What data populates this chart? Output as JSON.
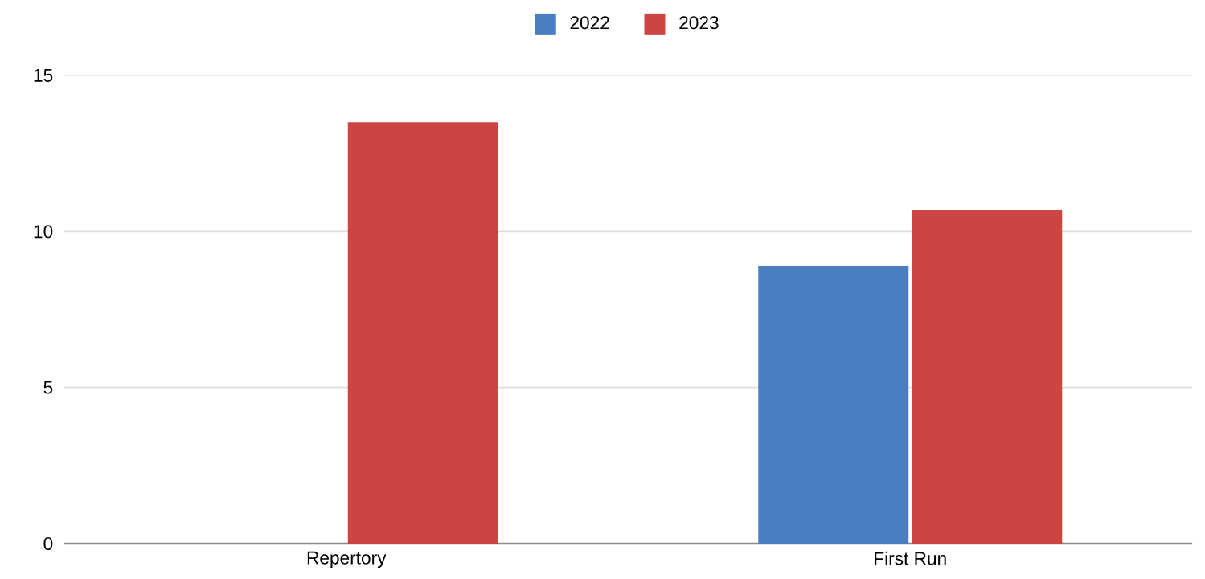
{
  "chart_data": {
    "type": "bar",
    "categories": [
      "Repertory",
      "First Run"
    ],
    "series": [
      {
        "name": "2022",
        "color": "#4a7ec3",
        "values": [
          null,
          8.9
        ]
      },
      {
        "name": "2023",
        "color": "#cd4543",
        "values": [
          13.5,
          10.7
        ]
      }
    ],
    "ylim": [
      0,
      15
    ],
    "yticks": [
      0,
      5,
      10,
      15
    ],
    "grid": "y",
    "legend": "top"
  }
}
